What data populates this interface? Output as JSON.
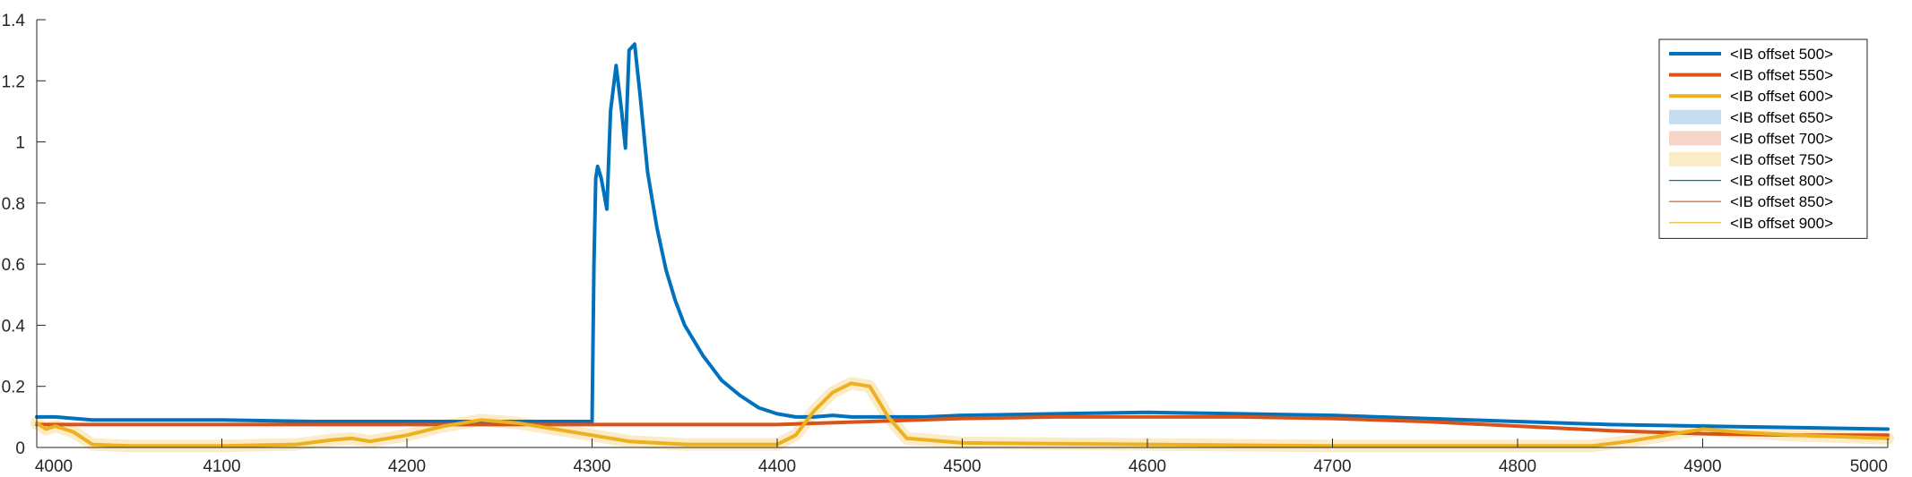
{
  "chart_data": {
    "type": "line",
    "title": "",
    "xlabel": "",
    "ylabel": "",
    "xlim": [
      4000,
      5000
    ],
    "ylim": [
      0,
      1.4
    ],
    "x_ticks": [
      4000,
      4100,
      4200,
      4300,
      4400,
      4500,
      4600,
      4700,
      4800,
      4900,
      5000
    ],
    "y_ticks": [
      0,
      0.2,
      0.4,
      0.6,
      0.8,
      1,
      1.2,
      1.4
    ],
    "x_tick_labels": [
      "4000",
      "4100",
      "4200",
      "4300",
      "4400",
      "4500",
      "4600",
      "4700",
      "4800",
      "4900",
      "5000"
    ],
    "y_tick_labels": [
      "0",
      "0.2",
      "0.4",
      "0.6",
      "0.8",
      "1",
      "1.2",
      "1.4"
    ],
    "grid": false,
    "legend_position": "top-right",
    "series": [
      {
        "name": "<IB offset 500>",
        "color": "#0072BD",
        "style": "thick-line",
        "x": [
          4000,
          4010,
          4030,
          4050,
          4100,
          4150,
          4200,
          4250,
          4290,
          4300,
          4301,
          4302,
          4303,
          4305,
          4308,
          4310,
          4313,
          4316,
          4318,
          4320,
          4323,
          4326,
          4330,
          4335,
          4340,
          4345,
          4350,
          4360,
          4370,
          4380,
          4390,
          4400,
          4410,
          4420,
          4430,
          4440,
          4450,
          4460,
          4480,
          4500,
          4550,
          4600,
          4650,
          4700,
          4750,
          4800,
          4850,
          4900,
          4950,
          5000
        ],
        "y": [
          0.1,
          0.1,
          0.09,
          0.09,
          0.09,
          0.085,
          0.085,
          0.085,
          0.085,
          0.085,
          0.6,
          0.88,
          0.92,
          0.88,
          0.78,
          1.1,
          1.25,
          1.1,
          0.98,
          1.3,
          1.32,
          1.15,
          0.9,
          0.72,
          0.58,
          0.48,
          0.4,
          0.3,
          0.22,
          0.17,
          0.13,
          0.11,
          0.1,
          0.1,
          0.105,
          0.1,
          0.1,
          0.1,
          0.1,
          0.105,
          0.11,
          0.115,
          0.11,
          0.105,
          0.095,
          0.085,
          0.075,
          0.07,
          0.065,
          0.06
        ]
      },
      {
        "name": "<IB offset 550>",
        "color": "#D95319",
        "style": "thick-line",
        "x": [
          4000,
          4050,
          4100,
          4150,
          4200,
          4250,
          4300,
          4350,
          4400,
          4450,
          4500,
          4550,
          4600,
          4650,
          4700,
          4750,
          4800,
          4850,
          4900,
          4950,
          5000
        ],
        "y": [
          0.075,
          0.075,
          0.075,
          0.075,
          0.075,
          0.075,
          0.075,
          0.075,
          0.075,
          0.085,
          0.095,
          0.1,
          0.1,
          0.1,
          0.095,
          0.085,
          0.07,
          0.055,
          0.045,
          0.04,
          0.04
        ]
      },
      {
        "name": "<IB offset 600>",
        "color": "#EDB120",
        "style": "thick-line",
        "x": [
          4000,
          4005,
          4010,
          4015,
          4020,
          4030,
          4050,
          4100,
          4140,
          4160,
          4170,
          4180,
          4200,
          4220,
          4240,
          4260,
          4280,
          4300,
          4320,
          4350,
          4400,
          4410,
          4420,
          4430,
          4440,
          4450,
          4460,
          4470,
          4500,
          4600,
          4700,
          4800,
          4840,
          4860,
          4880,
          4900,
          4920,
          4950,
          5000
        ],
        "y": [
          0.08,
          0.06,
          0.07,
          0.06,
          0.05,
          0.01,
          0.005,
          0.005,
          0.01,
          0.025,
          0.03,
          0.02,
          0.04,
          0.07,
          0.09,
          0.08,
          0.06,
          0.04,
          0.02,
          0.01,
          0.01,
          0.04,
          0.12,
          0.18,
          0.21,
          0.2,
          0.1,
          0.03,
          0.015,
          0.01,
          0.005,
          0.005,
          0.005,
          0.02,
          0.04,
          0.06,
          0.05,
          0.04,
          0.03
        ]
      }
    ],
    "legend": [
      {
        "label": "<IB offset 500>",
        "color": "#0072BD",
        "style": "thick-line"
      },
      {
        "label": "<IB offset 550>",
        "color": "#D95319",
        "style": "thick-line"
      },
      {
        "label": "<IB offset 600>",
        "color": "#EDB120",
        "style": "thick-line"
      },
      {
        "label": "<IB offset 650>",
        "color": "#C6DCF0",
        "style": "patch"
      },
      {
        "label": "<IB offset 700>",
        "color": "#F6D4C6",
        "style": "patch"
      },
      {
        "label": "<IB offset 750>",
        "color": "#FBECC7",
        "style": "patch"
      },
      {
        "label": "<IB offset 800>",
        "color": "#0072BD",
        "style": "thin-line"
      },
      {
        "label": "<IB offset 850>",
        "color": "#D95319",
        "style": "thin-line"
      },
      {
        "label": "<IB offset 900>",
        "color": "#EDB120",
        "style": "thin-line"
      }
    ]
  }
}
